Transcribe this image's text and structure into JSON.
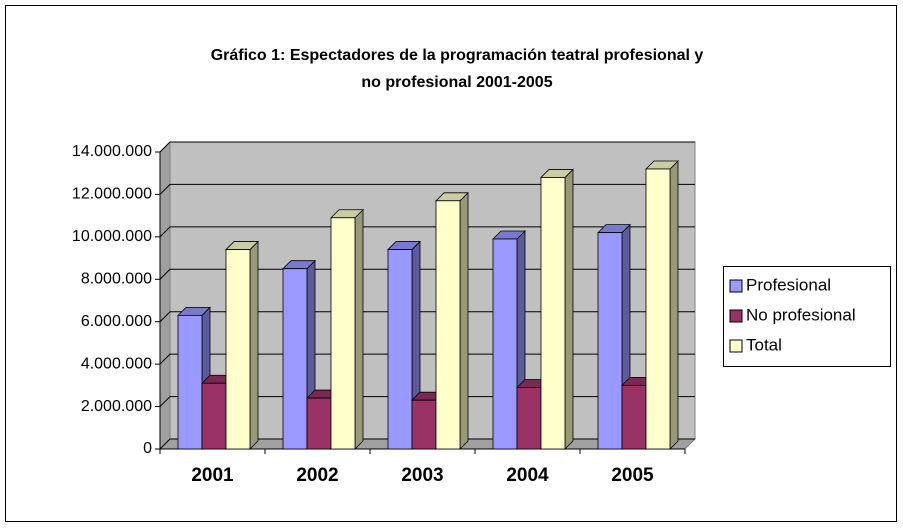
{
  "chart_data": {
    "type": "bar3d",
    "title": [
      "Gráfico 1: Espectadores de la programación teatral profesional y",
      "no profesional 2001-2005"
    ],
    "categories": [
      "2001",
      "2002",
      "2003",
      "2004",
      "2005"
    ],
    "series": [
      {
        "name": "Profesional",
        "color": "#9999ff",
        "values": [
          6300000,
          8500000,
          9400000,
          9900000,
          10200000
        ]
      },
      {
        "name": "No profesional",
        "color": "#993366",
        "values": [
          3100000,
          2400000,
          2300000,
          2900000,
          3000000
        ]
      },
      {
        "name": "Total",
        "color": "#ffffcc",
        "values": [
          9400000,
          10900000,
          11700000,
          12800000,
          13200000
        ]
      }
    ],
    "ylim": [
      0,
      14000000
    ],
    "yticks": [
      {
        "value": 0,
        "label": "0"
      },
      {
        "value": 2000000,
        "label": "2.000.000"
      },
      {
        "value": 4000000,
        "label": "4.000.000"
      },
      {
        "value": 6000000,
        "label": "6.000.000"
      },
      {
        "value": 8000000,
        "label": "8.000.000"
      },
      {
        "value": 10000000,
        "label": "10.000.000"
      },
      {
        "value": 12000000,
        "label": "12.000.000"
      },
      {
        "value": 14000000,
        "label": "14.000.000"
      }
    ],
    "grid": true,
    "legend": "right"
  }
}
